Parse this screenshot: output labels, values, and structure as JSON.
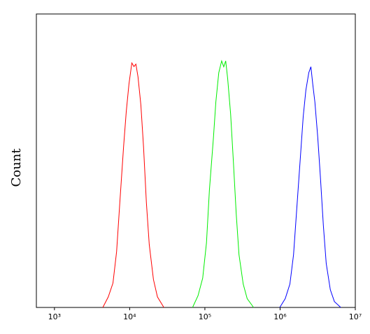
{
  "chart_data": {
    "type": "line",
    "xscale": "log",
    "ylabel": "Count",
    "xlim": [
      575,
      10000000
    ],
    "ylim": [
      0,
      100
    ],
    "xticks": [
      {
        "value": 1000,
        "label": "10³"
      },
      {
        "value": 10000,
        "label": "10⁴"
      },
      {
        "value": 100000,
        "label": "10⁵"
      },
      {
        "value": 1000000,
        "label": "10⁶"
      },
      {
        "value": 10000000,
        "label": "10⁷"
      }
    ],
    "series": [
      {
        "color": "#ff0000",
        "x": [
          4400,
          5200,
          6000,
          6700,
          7400,
          8300,
          9000,
          9800,
          10700,
          11400,
          12100,
          12900,
          14100,
          15300,
          16700,
          18200,
          20700,
          23400,
          28500
        ],
        "values": [
          0,
          3.6,
          8.3,
          19,
          35.7,
          54.8,
          66.7,
          76.2,
          83.3,
          82.1,
          82.9,
          78.6,
          69,
          54.8,
          35.7,
          21.4,
          9.5,
          3.6,
          0
        ]
      },
      {
        "color": "#00ee00",
        "x": [
          68600,
          81100,
          93600,
          105000,
          115000,
          130000,
          140000,
          153000,
          167000,
          178000,
          189000,
          201000,
          220000,
          239000,
          261000,
          284000,
          323000,
          365000,
          445000
        ],
        "values": [
          0,
          4,
          10,
          22,
          40,
          58,
          70,
          80,
          84,
          82,
          84,
          78,
          66,
          50,
          32,
          18,
          8,
          3,
          0
        ]
      },
      {
        "color": "#0000ff",
        "x": [
          990000,
          1170000,
          1350000,
          1510000,
          1670000,
          1870000,
          2030000,
          2200000,
          2410000,
          2570000,
          2720000,
          2900000,
          3170000,
          3440000,
          3760000,
          4100000,
          4660000,
          5270000,
          6410000
        ],
        "values": [
          0,
          3,
          8,
          18,
          34,
          52,
          65,
          74,
          80,
          82,
          76,
          70,
          58,
          44,
          28,
          15,
          6,
          2,
          0
        ]
      }
    ]
  }
}
